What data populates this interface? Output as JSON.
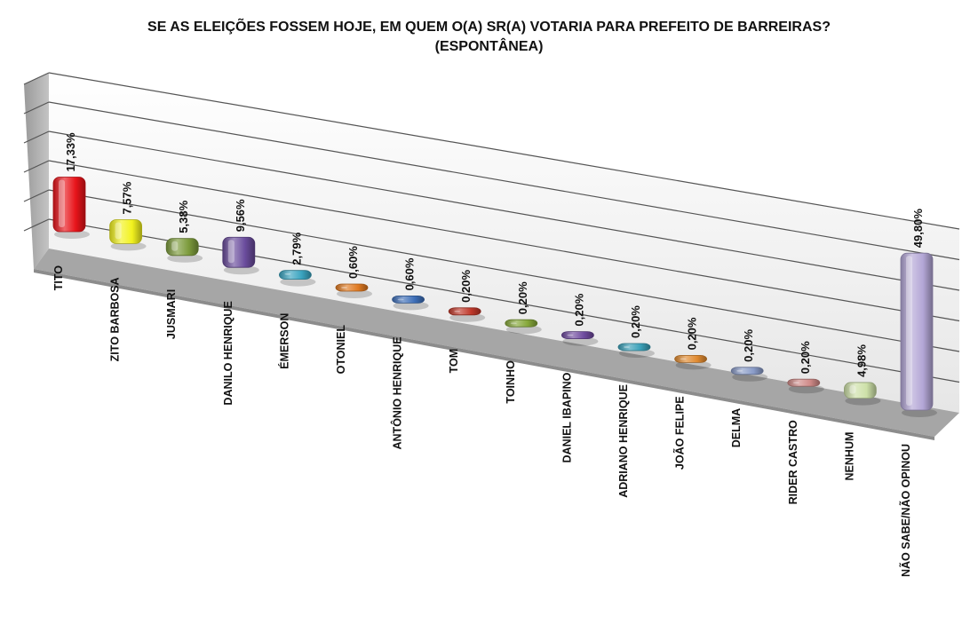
{
  "chart_data": {
    "type": "bar",
    "title": "SE AS ELEIÇÕES FOSSEM HOJE, EM QUEM O(A) SR(A) VOTARIA PARA PREFEITO DE BARREIRAS?",
    "subtitle": "(ESPONTÂNEA)",
    "xlabel": "",
    "ylabel": "",
    "ylim": [
      0,
      60
    ],
    "grid": true,
    "legend": "none",
    "categories": [
      "TITO",
      "ZITO BARBOSA",
      "JUSMARI",
      "DANILO HENRIQUE",
      "ÉMERSON",
      "OTONIEL",
      "ANTÔNIO HENRIQUE",
      "TOM",
      "TOINHO",
      "DANIEL IBAPINO",
      "ADRIANO HENRIQUE",
      "JOÃO FELIPE",
      "DELMA",
      "RIDER CASTRO",
      "NENHUM",
      "NÃO SABE/NÃO OPINOU"
    ],
    "values": [
      17.33,
      7.57,
      5.38,
      9.56,
      2.79,
      0.6,
      0.6,
      0.2,
      0.2,
      0.2,
      0.2,
      0.2,
      0.2,
      0.2,
      4.98,
      49.8
    ],
    "labels": [
      "17,33%",
      "7,57%",
      "5,38%",
      "9,56%",
      "2,79%",
      "0,60%",
      "0,60%",
      "0,20%",
      "0,20%",
      "0,20%",
      "0,20%",
      "0,20%",
      "0,20%",
      "0,20%",
      "4,98%",
      "49,80%"
    ],
    "colors": [
      "#e8141a",
      "#f2f21e",
      "#7c9b3c",
      "#6a4c9c",
      "#3aa4c0",
      "#e07a22",
      "#3e6fb8",
      "#c0392b",
      "#86a83a",
      "#6e4a9e",
      "#3aa0b8",
      "#e08a30",
      "#8a9cc8",
      "#d08a88",
      "#cde0a8",
      "#b3a6d6"
    ]
  }
}
